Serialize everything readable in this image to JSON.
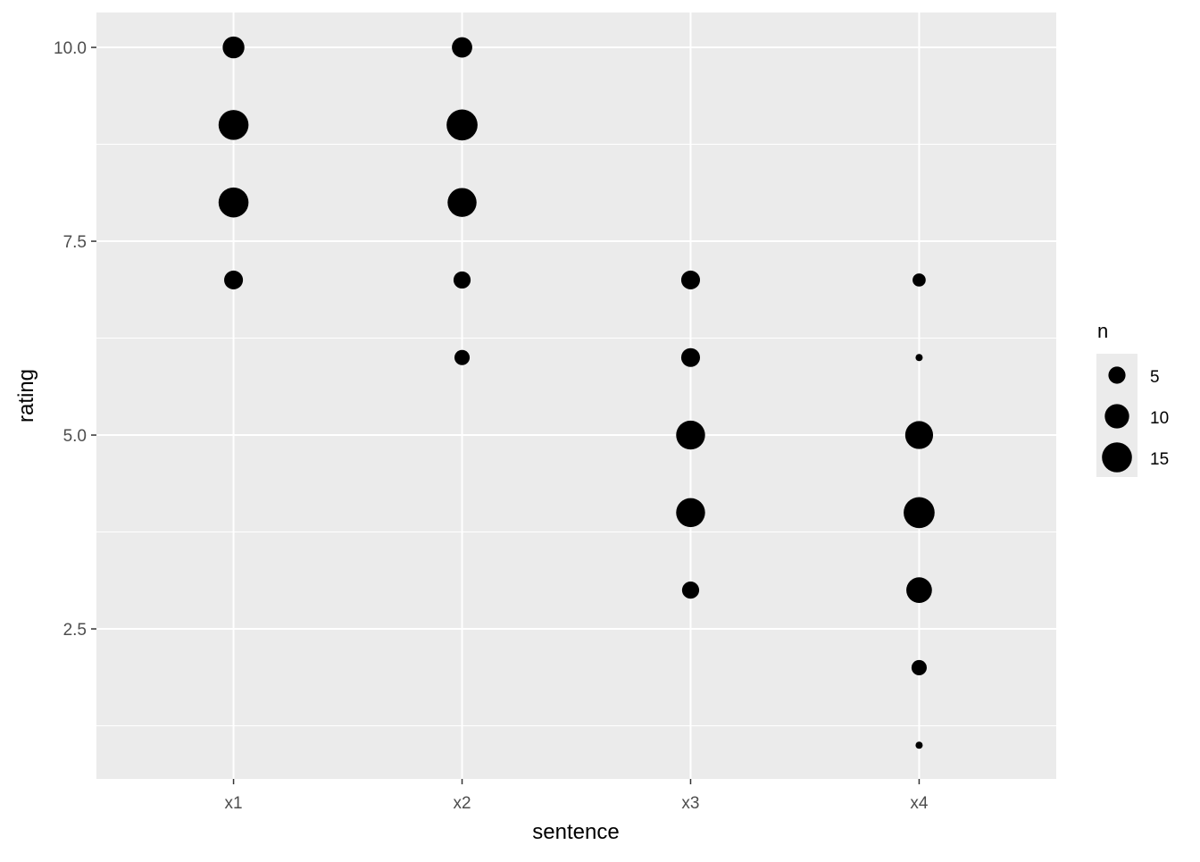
{
  "chart_data": {
    "type": "scatter",
    "xlabel": "sentence",
    "ylabel": "rating",
    "categories": [
      "x1",
      "x2",
      "x3",
      "x4"
    ],
    "y_ticks": [
      "2.5",
      "5.0",
      "7.5",
      "10.0"
    ],
    "ylim": [
      0.565,
      10.45
    ],
    "grid": true,
    "size_legend": {
      "title": "n",
      "breaks": [
        5,
        10,
        15
      ],
      "labels": [
        "5",
        "10",
        "15"
      ],
      "position": "right"
    },
    "points": [
      {
        "x": "x1",
        "y": 10,
        "n": 8
      },
      {
        "x": "x1",
        "y": 9,
        "n": 15
      },
      {
        "x": "x1",
        "y": 8,
        "n": 15
      },
      {
        "x": "x1",
        "y": 7,
        "n": 6
      },
      {
        "x": "x2",
        "y": 10,
        "n": 7
      },
      {
        "x": "x2",
        "y": 9,
        "n": 16
      },
      {
        "x": "x2",
        "y": 8,
        "n": 14
      },
      {
        "x": "x2",
        "y": 7,
        "n": 5
      },
      {
        "x": "x2",
        "y": 6,
        "n": 4
      },
      {
        "x": "x3",
        "y": 7,
        "n": 6
      },
      {
        "x": "x3",
        "y": 6,
        "n": 6
      },
      {
        "x": "x3",
        "y": 5,
        "n": 14
      },
      {
        "x": "x3",
        "y": 4,
        "n": 14
      },
      {
        "x": "x3",
        "y": 3,
        "n": 5
      },
      {
        "x": "x4",
        "y": 7,
        "n": 3
      },
      {
        "x": "x4",
        "y": 6,
        "n": 1
      },
      {
        "x": "x4",
        "y": 5,
        "n": 13
      },
      {
        "x": "x4",
        "y": 4,
        "n": 16
      },
      {
        "x": "x4",
        "y": 3,
        "n": 11
      },
      {
        "x": "x4",
        "y": 2,
        "n": 4
      },
      {
        "x": "x4",
        "y": 1,
        "n": 1
      }
    ],
    "colors": {
      "panel": "#EBEBEB",
      "grid": "#FFFFFF",
      "point": "#000000"
    }
  }
}
